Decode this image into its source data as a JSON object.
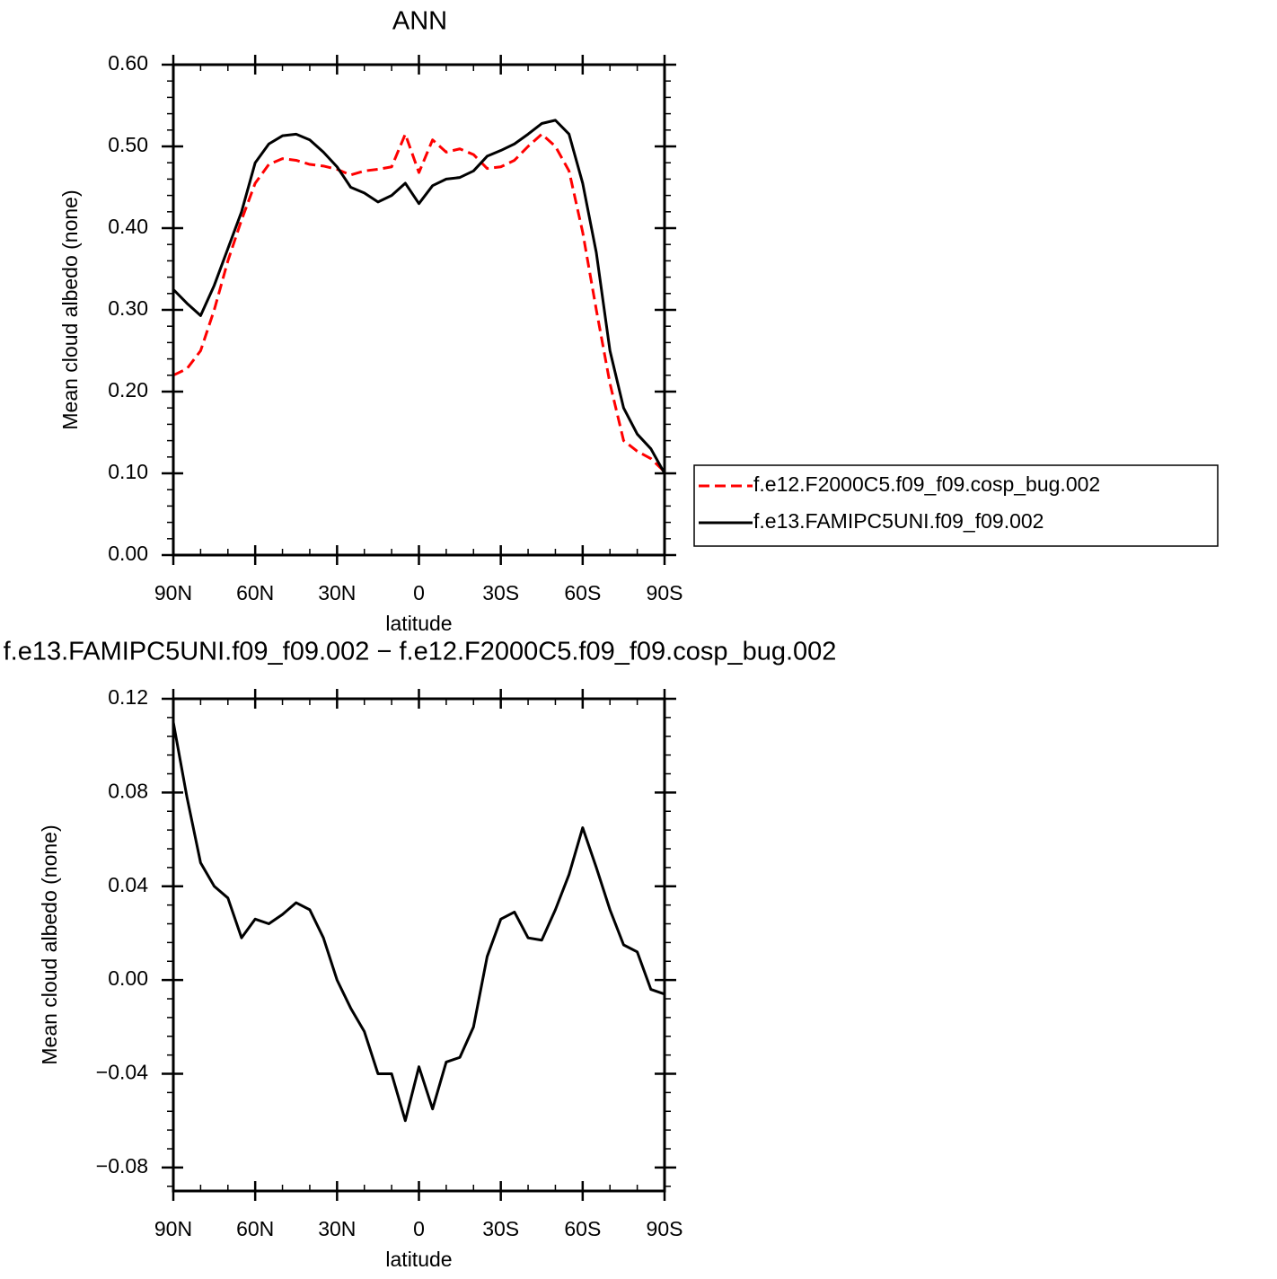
{
  "chart_data": [
    {
      "type": "line",
      "title": "ANN",
      "xlabel": "latitude",
      "ylabel": "Mean cloud albedo (none)",
      "x": [
        90,
        85,
        80,
        75,
        70,
        65,
        60,
        55,
        50,
        45,
        40,
        35,
        30,
        25,
        20,
        15,
        10,
        5,
        0,
        -5,
        -10,
        -15,
        -20,
        -25,
        -30,
        -35,
        -40,
        -45,
        -50,
        -55,
        -60,
        -65,
        -70,
        -75,
        -80,
        -85,
        -90
      ],
      "series": [
        {
          "name": "f.e12.F2000C5.f09_f09.cosp_bug.002",
          "color": "#ff0000",
          "linestyle": "dashed",
          "values": [
            0.22,
            0.228,
            0.25,
            0.3,
            0.36,
            0.41,
            0.455,
            0.478,
            0.485,
            0.483,
            0.478,
            0.476,
            0.472,
            0.465,
            0.47,
            0.472,
            0.475,
            0.515,
            0.468,
            0.508,
            0.493,
            0.497,
            0.49,
            0.473,
            0.475,
            0.483,
            0.5,
            0.515,
            0.5,
            0.47,
            0.395,
            0.3,
            0.21,
            0.14,
            0.127,
            0.118,
            0.102
          ]
        },
        {
          "name": "f.e13.FAMIPC5UNI.f09_f09.002",
          "color": "#000000",
          "linestyle": "solid",
          "values": [
            0.325,
            0.308,
            0.293,
            0.33,
            0.375,
            0.42,
            0.48,
            0.503,
            0.513,
            0.515,
            0.508,
            0.493,
            0.475,
            0.45,
            0.443,
            0.432,
            0.44,
            0.455,
            0.43,
            0.452,
            0.46,
            0.462,
            0.47,
            0.488,
            0.495,
            0.503,
            0.515,
            0.528,
            0.532,
            0.515,
            0.455,
            0.37,
            0.25,
            0.18,
            0.148,
            0.13,
            0.1
          ]
        }
      ],
      "xlim": [
        90,
        -90
      ],
      "xticks": [
        {
          "value": 90,
          "label": "90N"
        },
        {
          "value": 60,
          "label": "60N"
        },
        {
          "value": 30,
          "label": "30N"
        },
        0,
        {
          "value": -30,
          "label": "30S"
        },
        {
          "value": -60,
          "label": "60S"
        },
        {
          "value": -90,
          "label": "90S"
        }
      ],
      "ylim": [
        0,
        0.6
      ],
      "yticks": [
        {
          "value": 0,
          "label": "0.00"
        },
        {
          "value": 0.1,
          "label": "0.10"
        },
        {
          "value": 0.2,
          "label": "0.20"
        },
        {
          "value": 0.3,
          "label": "0.30"
        },
        {
          "value": 0.4,
          "label": "0.40"
        },
        {
          "value": 0.5,
          "label": "0.50"
        },
        {
          "value": 0.6,
          "label": "0.60"
        }
      ],
      "legend": "right"
    },
    {
      "type": "line",
      "title": "f.e13.FAMIPC5UNI.f09_f09.002 − f.e12.F2000C5.f09_f09.cosp_bug.002",
      "xlabel": "latitude",
      "ylabel": "Mean cloud albedo (none)",
      "x": [
        90,
        85,
        80,
        75,
        70,
        65,
        60,
        55,
        50,
        45,
        40,
        35,
        30,
        25,
        20,
        15,
        10,
        5,
        0,
        -5,
        -10,
        -15,
        -20,
        -25,
        -30,
        -35,
        -40,
        -45,
        -50,
        -55,
        -60,
        -65,
        -70,
        -75,
        -80,
        -85,
        -90
      ],
      "series": [
        {
          "color": "#000000",
          "linestyle": "solid",
          "values": [
            0.11,
            0.078,
            0.05,
            0.04,
            0.035,
            0.018,
            0.026,
            0.024,
            0.028,
            0.033,
            0.03,
            0.018,
            0.0,
            -0.012,
            -0.022,
            -0.04,
            -0.04,
            -0.06,
            -0.037,
            -0.055,
            -0.035,
            -0.033,
            -0.02,
            0.01,
            0.026,
            0.029,
            0.018,
            0.017,
            0.03,
            0.045,
            0.065,
            0.048,
            0.03,
            0.015,
            0.012,
            -0.004,
            -0.006
          ]
        }
      ],
      "xlim": [
        90,
        -90
      ],
      "xticks": [
        {
          "value": 90,
          "label": "90N"
        },
        {
          "value": 60,
          "label": "60N"
        },
        {
          "value": 30,
          "label": "30N"
        },
        0,
        {
          "value": -30,
          "label": "30S"
        },
        {
          "value": -60,
          "label": "60S"
        },
        {
          "value": -90,
          "label": "90S"
        }
      ],
      "ylim": [
        -0.09,
        0.12
      ],
      "yticks": [
        {
          "value": -0.08,
          "label": "−0.08"
        },
        {
          "value": -0.04,
          "label": "−0.04"
        },
        {
          "value": 0,
          "label": "0.00"
        },
        0.04,
        0.08,
        0.12
      ]
    }
  ]
}
